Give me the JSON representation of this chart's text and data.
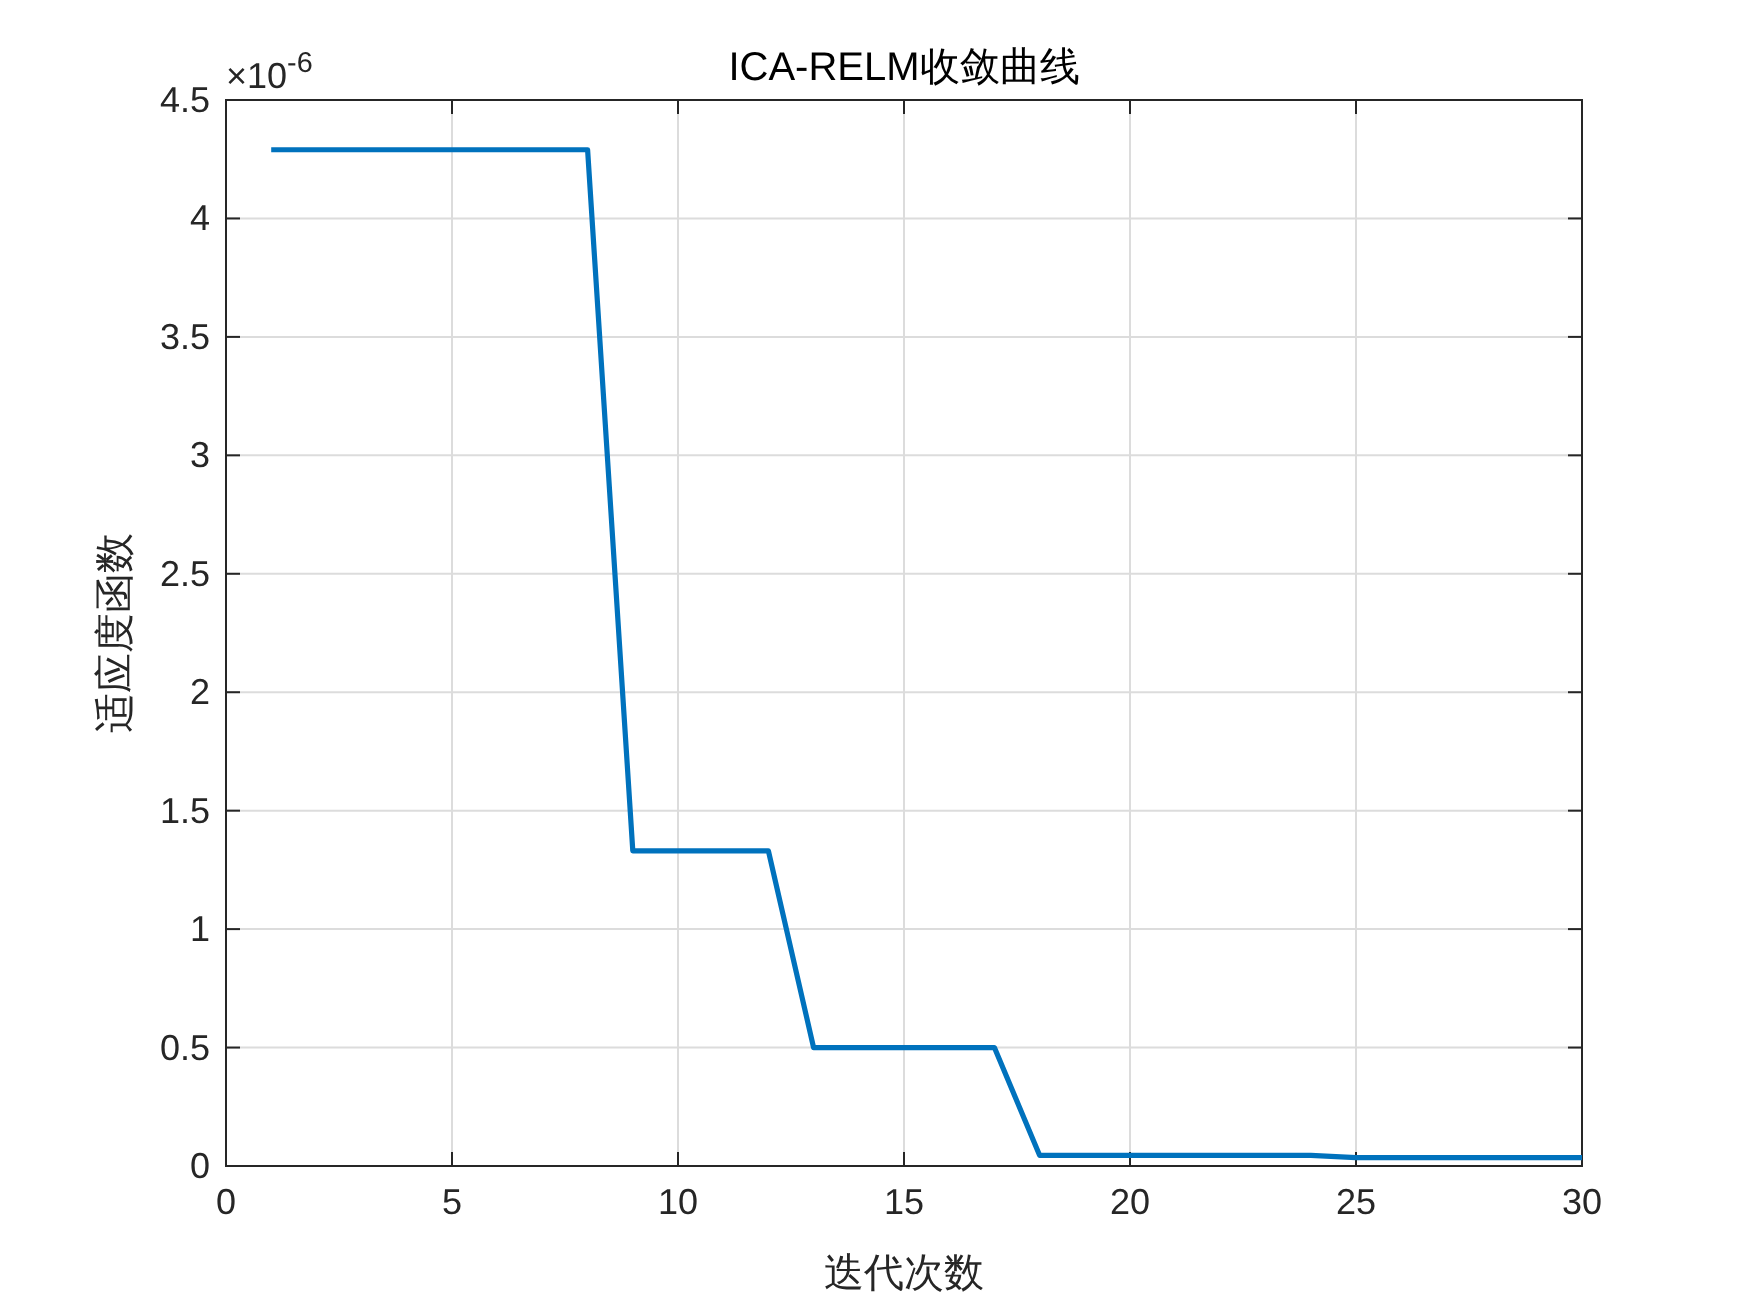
{
  "chart_data": {
    "type": "line",
    "title": "ICA-RELM收敛曲线",
    "xlabel": "迭代次数",
    "ylabel": "适应度函数",
    "x": [
      1,
      2,
      3,
      4,
      5,
      6,
      7,
      8,
      9,
      10,
      11,
      12,
      13,
      14,
      15,
      16,
      17,
      18,
      19,
      20,
      21,
      22,
      23,
      24,
      25,
      26,
      27,
      28,
      29,
      30
    ],
    "values": [
      4.29,
      4.29,
      4.29,
      4.29,
      4.29,
      4.29,
      4.29,
      4.29,
      1.33,
      1.33,
      1.33,
      1.33,
      0.5,
      0.5,
      0.5,
      0.5,
      0.5,
      0.045,
      0.045,
      0.045,
      0.045,
      0.045,
      0.045,
      0.045,
      0.035,
      0.035,
      0.035,
      0.035,
      0.035,
      0.035
    ],
    "color": "#0072bd",
    "xlim": [
      0,
      30
    ],
    "xticks": [
      0,
      5,
      10,
      15,
      20,
      25,
      30
    ],
    "ylim": [
      0,
      4.5
    ],
    "yticks": [
      0,
      0.5,
      1,
      1.5,
      2,
      2.5,
      3,
      3.5,
      4,
      4.5
    ],
    "grid": true,
    "annotations": [
      "×10$^{-6}$"
    ]
  }
}
